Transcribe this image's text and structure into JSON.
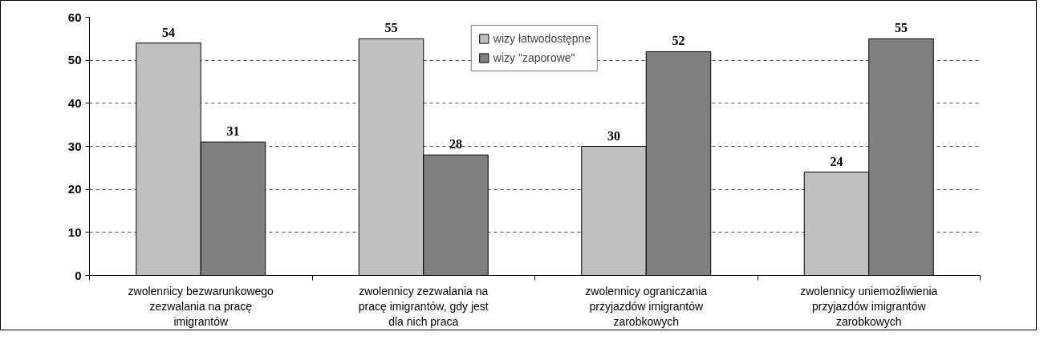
{
  "chart_data": {
    "type": "bar",
    "categories": [
      "zwolennicy bezwarunkowego\nzezwalania na pracę\nimigrantów",
      "zwolennicy zezwalania na\npracę imigrantów, gdy jest\ndla nich praca",
      "zwolennicy ograniczania\nprzyjazdów imigrantów\nzarobkowych",
      "zwolennicy uniemożliwienia\nprzyjazdów imigrantów\nzarobkowych"
    ],
    "series": [
      {
        "name": "wizy łatwodostępne",
        "color": "#c0c0c0",
        "values": [
          54,
          55,
          30,
          24
        ]
      },
      {
        "name": "wizy \"zaporowe\"",
        "color": "#808080",
        "values": [
          31,
          28,
          52,
          55
        ]
      }
    ],
    "ylim": [
      0,
      60
    ],
    "yticks": [
      0,
      10,
      20,
      30,
      40,
      50,
      60
    ],
    "grid": "y",
    "legend": "top",
    "data_labels": true
  }
}
